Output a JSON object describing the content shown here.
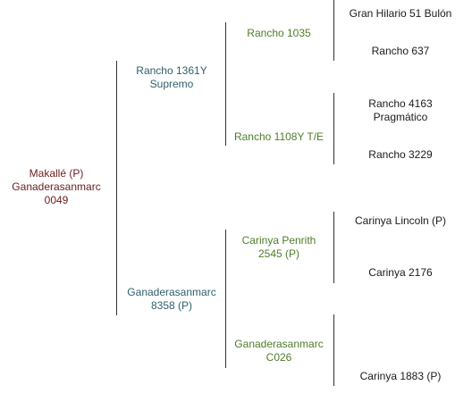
{
  "subject": {
    "line1": "Makallé (P)",
    "line2": "Ganaderasanmarc",
    "line3": "0049"
  },
  "sire": {
    "line1": "Rancho 1361Y",
    "line2": "Supremo"
  },
  "dam": {
    "line1": "Ganaderasanmarc",
    "line2": "8358 (P)"
  },
  "sire_sire": {
    "line1": "Rancho 1035"
  },
  "sire_dam": {
    "line1": "Rancho 1108Y T/E"
  },
  "dam_sire": {
    "line1": "Carinya Penrith",
    "line2": "2545 (P)"
  },
  "dam_dam": {
    "line1": "Ganaderasanmarc",
    "line2": "C026"
  },
  "ggp": [
    {
      "line1": "Gran Hilario 51 Bulón"
    },
    {
      "line1": "Rancho 637"
    },
    {
      "line1": "Rancho 4163",
      "line2": "Pragmático"
    },
    {
      "line1": "Rancho 3229"
    },
    {
      "line1": "Carinya Lincoln (P)"
    },
    {
      "line1": "Carinya 2176"
    },
    {
      "line1": ""
    },
    {
      "line1": "Carinya 1883 (P)"
    }
  ],
  "colors": {
    "generation0": "#6b1d1d",
    "generation1": "#2f5f6b",
    "generation2": "#4e7d2a",
    "generation3": "#1a1a1a",
    "connector": "#333333"
  }
}
